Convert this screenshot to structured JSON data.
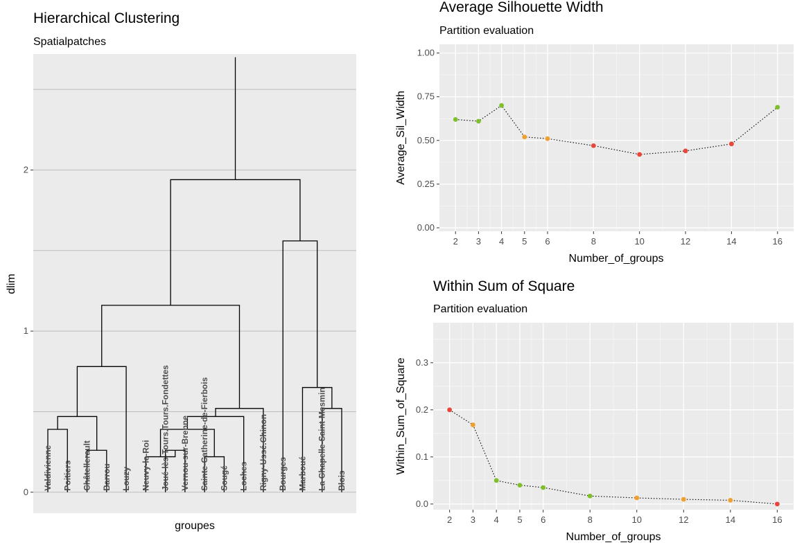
{
  "colors": {
    "panel": "#ebebeb",
    "grid_major": "#ffffff",
    "grid_minor": "#f5f5f5",
    "dendro_grid": "#bdbdbd",
    "good": "#7fbf2a",
    "mid": "#f0a030",
    "bad": "#e8473c"
  },
  "chart_data": [
    {
      "type": "dendrogram",
      "title": "Hierarchical Clustering",
      "subtitle": "Spatialpatches",
      "xlabel": "groupes",
      "ylabel": "dlim",
      "ylim": [
        -0.13,
        2.72
      ],
      "yticks": [
        0,
        1,
        2
      ],
      "yticklabels": [
        "0",
        "1",
        "2"
      ],
      "leaves": [
        "Valdivienne",
        "Poitiers",
        "Châtellerault",
        "Barrou",
        "Louzy",
        "Neuvy-le-Roi",
        "Joué-lès-Tours.Tours.Fondettes",
        "Vernou-sur-Brenne",
        "Sainte-Catherine-de-Fierbois",
        "Sougé",
        "Loches",
        "Rigny-Ussé.Chinon",
        "Bourges",
        "Marboué",
        "La Chapelle-Saint-Mesmin",
        "Blois"
      ],
      "merges": [
        {
          "a": "L1",
          "b": "L2",
          "h": 0.39
        },
        {
          "a": "L3",
          "b": "L4",
          "h": 0.26
        },
        {
          "a": "N1",
          "b": "N2",
          "h": 0.47
        },
        {
          "a": "N3",
          "b": "L5",
          "h": 0.78
        },
        {
          "a": "L7",
          "b": "L8",
          "h": 0.26
        },
        {
          "a": "L6",
          "b": "N5",
          "h": 0.22
        },
        {
          "a": "L9",
          "b": "L10",
          "h": 0.22
        },
        {
          "a": "N6",
          "b": "N7",
          "h": 0.39
        },
        {
          "a": "N8",
          "b": "L11",
          "h": 0.47
        },
        {
          "a": "N9",
          "b": "L12",
          "h": 0.52
        },
        {
          "a": "N4",
          "b": "N10",
          "h": 1.16
        },
        {
          "a": "L15",
          "b": "L16",
          "h": 0.52
        },
        {
          "a": "L14",
          "b": "N12",
          "h": 0.65
        },
        {
          "a": "L13",
          "b": "N13",
          "h": 1.56
        },
        {
          "a": "N11",
          "b": "N14",
          "h": 1.94
        },
        {
          "a": "N15",
          "b": "N15",
          "h": 2.7
        }
      ]
    },
    {
      "type": "line",
      "title": "Average Silhouette Width",
      "subtitle": "Partition evaluation",
      "xlabel": "Number_of_groups",
      "ylabel": "Average_Sil_Width",
      "xlim": [
        1.3,
        16.7
      ],
      "ylim": [
        -0.02,
        1.05
      ],
      "xticks": [
        2,
        3,
        4,
        5,
        6,
        8,
        10,
        12,
        14,
        16
      ],
      "yticks": [
        0.0,
        0.25,
        0.5,
        0.75,
        1.0
      ],
      "yticklabels": [
        "0.00",
        "0.25",
        "0.50",
        "0.75",
        "1.00"
      ],
      "x": [
        2,
        3,
        4,
        5,
        6,
        8,
        10,
        12,
        14,
        16
      ],
      "y": [
        0.62,
        0.61,
        0.7,
        0.52,
        0.51,
        0.47,
        0.42,
        0.44,
        0.48,
        0.69
      ],
      "point_colors": [
        "good",
        "good",
        "good",
        "mid",
        "mid",
        "bad",
        "bad",
        "bad",
        "bad",
        "good"
      ]
    },
    {
      "type": "line",
      "title": "Within Sum of Square",
      "subtitle": "Partition evaluation",
      "xlabel": "Number_of_groups",
      "ylabel": "Within_Sum_of_Square",
      "xlim": [
        1.3,
        16.7
      ],
      "ylim": [
        -0.012,
        0.385
      ],
      "xticks": [
        2,
        3,
        4,
        5,
        6,
        8,
        10,
        12,
        14,
        16
      ],
      "yticks": [
        0.0,
        0.1,
        0.2,
        0.3
      ],
      "yticklabels": [
        "0.0",
        "0.1",
        "0.2",
        "0.3"
      ],
      "x": [
        2,
        3,
        4,
        5,
        6,
        8,
        10,
        12,
        14,
        16
      ],
      "y": [
        0.2,
        0.168,
        0.05,
        0.04,
        0.035,
        0.017,
        0.013,
        0.01,
        0.008,
        0.0
      ],
      "point_colors": [
        "bad",
        "mid",
        "good",
        "good",
        "good",
        "good",
        "mid",
        "mid",
        "mid",
        "bad"
      ]
    }
  ]
}
